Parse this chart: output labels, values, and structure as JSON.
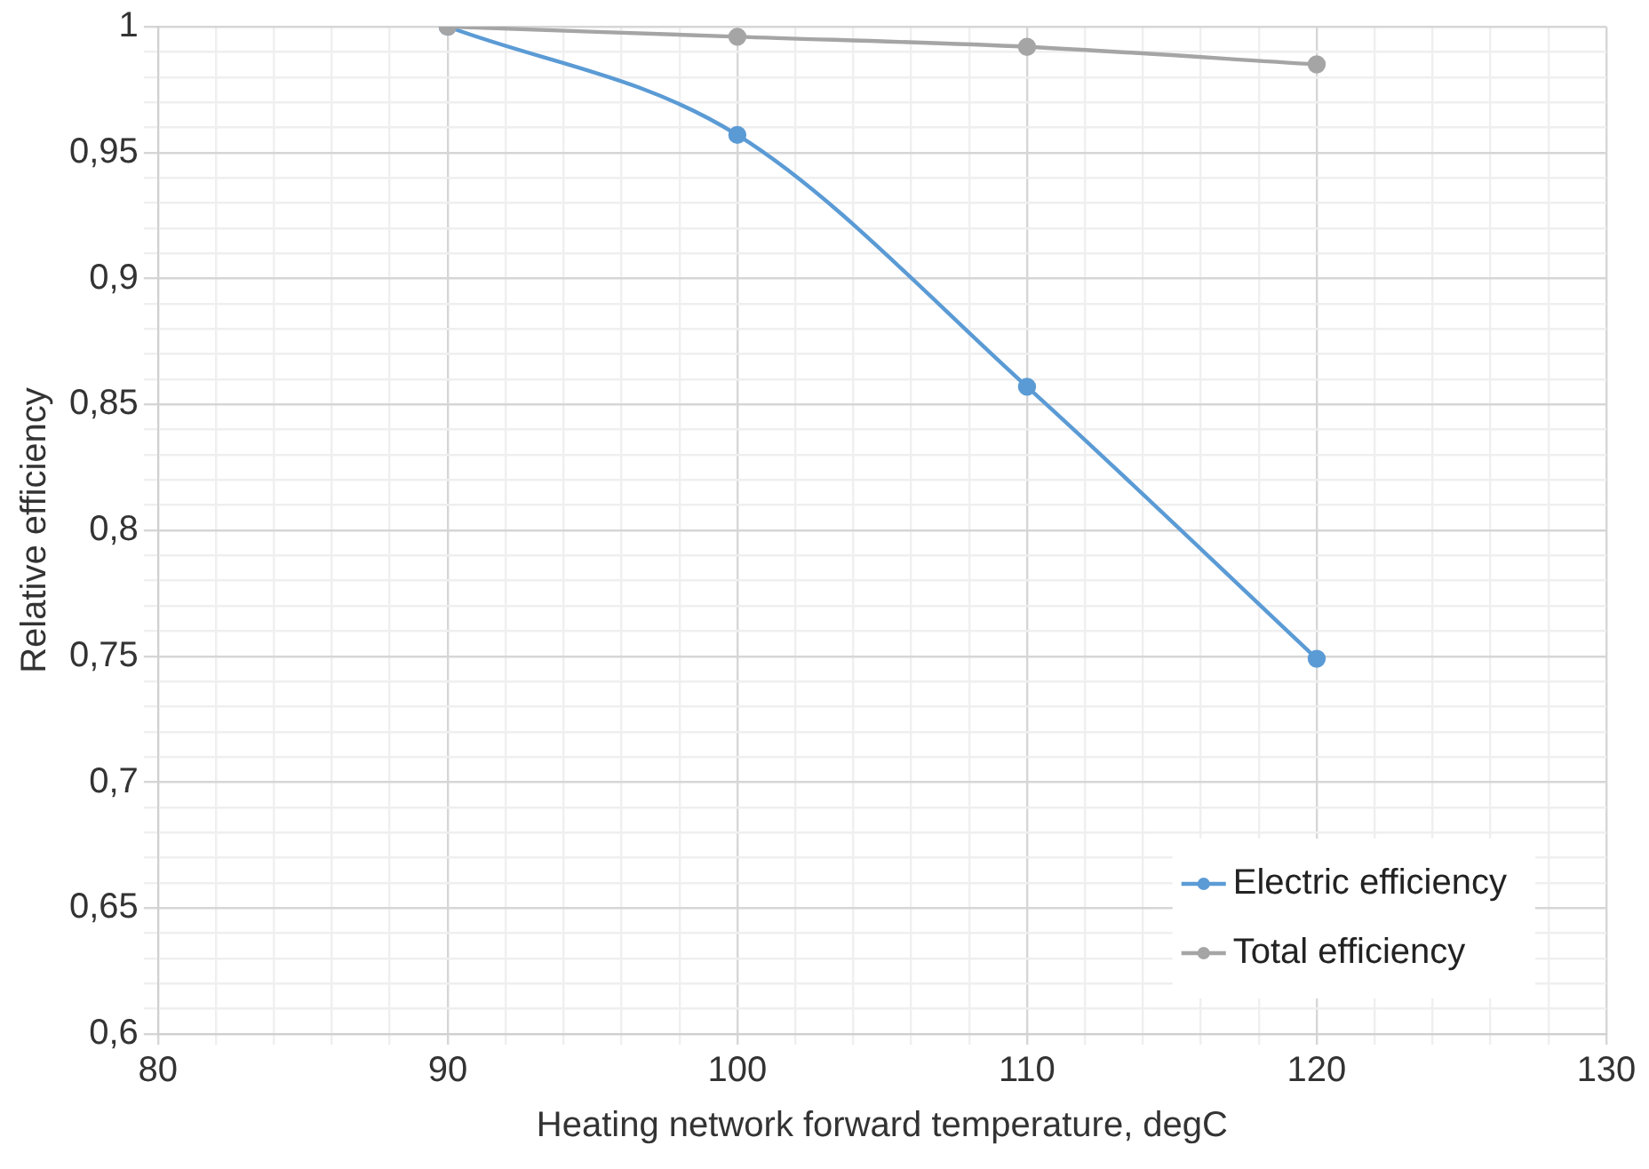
{
  "chart_data": {
    "type": "line",
    "xlabel": "Heating network forward temperature, degC",
    "ylabel": "Relative efficiency",
    "x": [
      90,
      100,
      110,
      120
    ],
    "series": [
      {
        "name": "Electric efficiency",
        "color": "#5b9bd5",
        "values": [
          1,
          0.957,
          0.857,
          0.749
        ]
      },
      {
        "name": "Total efficiency",
        "color": "#a5a5a5",
        "values": [
          1,
          0.996,
          0.992,
          0.985
        ]
      }
    ],
    "xlim": [
      80,
      130
    ],
    "xticks": [
      80,
      {
        "value": 82,
        "label": null
      },
      {
        "value": 84,
        "label": null
      },
      {
        "value": 86,
        "label": null
      },
      {
        "value": 88,
        "label": null
      },
      90,
      {
        "value": 92,
        "label": null
      },
      {
        "value": 94,
        "label": null
      },
      {
        "value": 96,
        "label": null
      },
      {
        "value": 98,
        "label": null
      },
      100,
      {
        "value": 102,
        "label": null
      },
      {
        "value": 104,
        "label": null
      },
      {
        "value": 106,
        "label": null
      },
      {
        "value": 108,
        "label": null
      },
      110,
      {
        "value": 112,
        "label": null
      },
      {
        "value": 114,
        "label": null
      },
      {
        "value": 116,
        "label": null
      },
      {
        "value": 118,
        "label": null
      },
      120,
      {
        "value": 122,
        "label": null
      },
      {
        "value": 124,
        "label": null
      },
      {
        "value": 126,
        "label": null
      },
      {
        "value": 128,
        "label": null
      },
      130
    ],
    "ylim": [
      0.6,
      1
    ],
    "yticks": [
      {
        "value": 0.6,
        "label": "0,6"
      },
      {
        "value": 0.61,
        "label": null
      },
      {
        "value": 0.62,
        "label": null
      },
      {
        "value": 0.63,
        "label": null
      },
      {
        "value": 0.64,
        "label": null
      },
      {
        "value": 0.65,
        "label": "0,65"
      },
      {
        "value": 0.66,
        "label": null
      },
      {
        "value": 0.67,
        "label": null
      },
      {
        "value": 0.68,
        "label": null
      },
      {
        "value": 0.69,
        "label": null
      },
      {
        "value": 0.7,
        "label": "0,7"
      },
      {
        "value": 0.71,
        "label": null
      },
      {
        "value": 0.72,
        "label": null
      },
      {
        "value": 0.73,
        "label": null
      },
      {
        "value": 0.74,
        "label": null
      },
      {
        "value": 0.75,
        "label": "0,75"
      },
      {
        "value": 0.76,
        "label": null
      },
      {
        "value": 0.77,
        "label": null
      },
      {
        "value": 0.78,
        "label": null
      },
      {
        "value": 0.79,
        "label": null
      },
      {
        "value": 0.8,
        "label": "0,8"
      },
      {
        "value": 0.81,
        "label": null
      },
      {
        "value": 0.82,
        "label": null
      },
      {
        "value": 0.83,
        "label": null
      },
      {
        "value": 0.84,
        "label": null
      },
      {
        "value": 0.85,
        "label": "0,85"
      },
      {
        "value": 0.86,
        "label": null
      },
      {
        "value": 0.87,
        "label": null
      },
      {
        "value": 0.88,
        "label": null
      },
      {
        "value": 0.89,
        "label": null
      },
      {
        "value": 0.9,
        "label": "0,9"
      },
      {
        "value": 0.91,
        "label": null
      },
      {
        "value": 0.92,
        "label": null
      },
      {
        "value": 0.93,
        "label": null
      },
      {
        "value": 0.94,
        "label": null
      },
      {
        "value": 0.95,
        "label": "0,95"
      },
      {
        "value": 0.96,
        "label": null
      },
      {
        "value": 0.97,
        "label": null
      },
      {
        "value": 0.98,
        "label": null
      },
      {
        "value": 0.99,
        "label": null
      },
      1
    ],
    "grid": true,
    "legend": "bottom right",
    "marker": "circle",
    "line_style": "solid"
  }
}
